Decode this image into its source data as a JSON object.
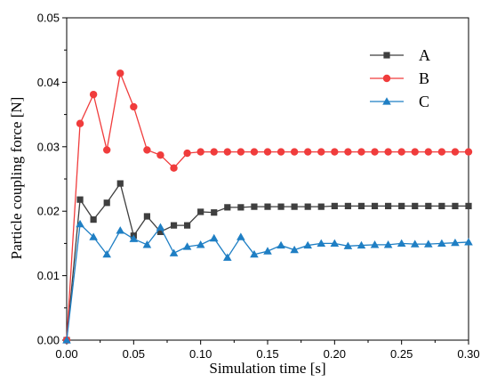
{
  "chart_data": {
    "type": "line",
    "title": "",
    "xlabel": "Simulation time [s]",
    "ylabel": "Particle coupling force [N]",
    "xlim": [
      0,
      0.3
    ],
    "ylim": [
      0,
      0.05
    ],
    "xticks": [
      0.0,
      0.05,
      0.1,
      0.15,
      0.2,
      0.25,
      0.3
    ],
    "yticks": [
      0.0,
      0.01,
      0.02,
      0.03,
      0.04,
      0.05
    ],
    "xtick_labels": [
      "0.00",
      "0.05",
      "0.10",
      "0.15",
      "0.20",
      "0.25",
      "0.30"
    ],
    "ytick_labels": [
      "0.00",
      "0.01",
      "0.02",
      "0.03",
      "0.04",
      "0.05"
    ],
    "grid": false,
    "legend_position": "top-right",
    "x": [
      0.0,
      0.01,
      0.02,
      0.03,
      0.04,
      0.05,
      0.06,
      0.07,
      0.08,
      0.09,
      0.1,
      0.11,
      0.12,
      0.13,
      0.14,
      0.15,
      0.16,
      0.17,
      0.18,
      0.19,
      0.2,
      0.21,
      0.22,
      0.23,
      0.24,
      0.25,
      0.26,
      0.27,
      0.28,
      0.29,
      0.3
    ],
    "series": [
      {
        "name": "A",
        "color": "#3f3f3f",
        "marker": "square",
        "values": [
          0.0,
          0.0218,
          0.0187,
          0.0213,
          0.0243,
          0.0162,
          0.0192,
          0.0168,
          0.0178,
          0.0178,
          0.0199,
          0.0198,
          0.0206,
          0.0206,
          0.0207,
          0.0207,
          0.0207,
          0.0207,
          0.0207,
          0.0207,
          0.0208,
          0.0208,
          0.0208,
          0.0208,
          0.0208,
          0.0208,
          0.0208,
          0.0208,
          0.0208,
          0.0208,
          0.0208
        ]
      },
      {
        "name": "B",
        "color": "#f03c3c",
        "marker": "circle",
        "values": [
          0.0,
          0.0336,
          0.0381,
          0.0295,
          0.0414,
          0.0362,
          0.0295,
          0.0287,
          0.0267,
          0.029,
          0.0292,
          0.0292,
          0.0292,
          0.0292,
          0.0292,
          0.0292,
          0.0292,
          0.0292,
          0.0292,
          0.0292,
          0.0292,
          0.0292,
          0.0292,
          0.0292,
          0.0292,
          0.0292,
          0.0292,
          0.0292,
          0.0292,
          0.0292,
          0.0292
        ]
      },
      {
        "name": "C",
        "color": "#1f7fc4",
        "marker": "triangle",
        "values": [
          0.0,
          0.018,
          0.016,
          0.0133,
          0.017,
          0.0157,
          0.0148,
          0.0175,
          0.0135,
          0.0145,
          0.0148,
          0.0158,
          0.0128,
          0.016,
          0.0133,
          0.0138,
          0.0147,
          0.014,
          0.0147,
          0.015,
          0.015,
          0.0146,
          0.0147,
          0.0148,
          0.0148,
          0.015,
          0.0149,
          0.0149,
          0.015,
          0.0151,
          0.0152
        ]
      }
    ]
  }
}
